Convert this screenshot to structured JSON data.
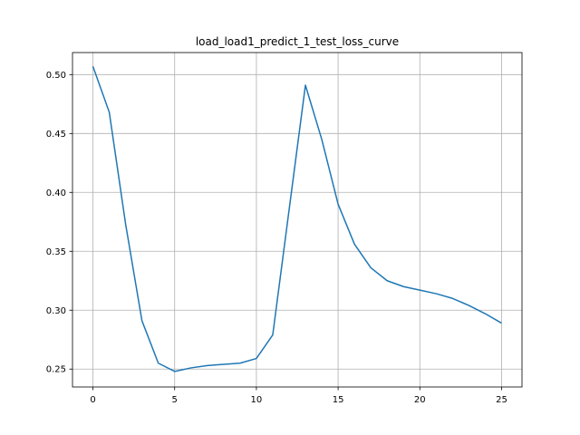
{
  "chart_data": {
    "type": "line",
    "title": "load_load1_predict_1_test_loss_curve",
    "xlabel": "",
    "ylabel": "",
    "xlim": [
      -1.25,
      26.25
    ],
    "ylim": [
      0.2348,
      0.5187
    ],
    "grid": true,
    "x_ticks": [
      0,
      5,
      10,
      15,
      20,
      25
    ],
    "y_ticks": [
      0.25,
      0.3,
      0.35,
      0.4,
      0.45,
      0.5
    ],
    "y_tick_labels": [
      "0.25",
      "0.30",
      "0.35",
      "0.40",
      "0.45",
      "0.50"
    ],
    "series": [
      {
        "color": "#1f77b4",
        "x": [
          0,
          1,
          2,
          3,
          4,
          5,
          6,
          7,
          8,
          9,
          10,
          11,
          12,
          13,
          14,
          15,
          16,
          17,
          18,
          19,
          20,
          21,
          22,
          23,
          24,
          25
        ],
        "y": [
          0.507,
          0.468,
          0.373,
          0.291,
          0.255,
          0.248,
          0.251,
          0.253,
          0.254,
          0.255,
          0.259,
          0.279,
          0.385,
          0.491,
          0.445,
          0.39,
          0.356,
          0.336,
          0.325,
          0.32,
          0.317,
          0.314,
          0.31,
          0.304,
          0.297,
          0.289
        ]
      }
    ]
  }
}
